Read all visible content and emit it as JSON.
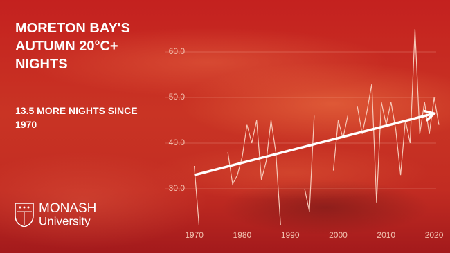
{
  "chart_data": {
    "type": "line",
    "title": "MORETON BAY'S AUTUMN 20°C+ NIGHTS",
    "annotation": "13.5 MORE NIGHTS SINCE 1970",
    "x": [
      1970,
      1971,
      1972,
      1973,
      1974,
      1975,
      1976,
      1977,
      1978,
      1979,
      1980,
      1981,
      1982,
      1983,
      1984,
      1985,
      1986,
      1987,
      1988,
      1989,
      1990,
      1991,
      1992,
      1993,
      1994,
      1995,
      1996,
      1997,
      1998,
      1999,
      2000,
      2001,
      2002,
      2003,
      2004,
      2005,
      2006,
      2007,
      2008,
      2009,
      2010,
      2011,
      2012,
      2013,
      2014,
      2015,
      2016,
      2017,
      2018,
      2019,
      2020,
      2021
    ],
    "values": [
      35,
      22,
      null,
      null,
      null,
      null,
      null,
      38,
      31,
      33,
      37,
      44,
      40,
      45,
      32,
      36,
      45,
      38,
      22,
      null,
      null,
      null,
      null,
      30,
      25,
      46,
      null,
      null,
      null,
      34,
      45,
      41,
      46,
      null,
      48,
      42,
      47,
      53,
      27,
      49,
      44,
      49,
      43,
      33,
      45,
      40,
      65,
      42,
      49,
      42,
      50,
      44
    ],
    "color": "#f6c9b8",
    "trend": {
      "x": [
        1970,
        2020
      ],
      "values": [
        33,
        46.5
      ],
      "color": "#ffffff"
    },
    "xlim": [
      1964,
      2021
    ],
    "xticks": [
      1970,
      1980,
      1990,
      2000,
      2010,
      2020
    ],
    "ylim": [
      20,
      66
    ],
    "yticks": [
      {
        "value": 30,
        "label": "30.0"
      },
      {
        "value": 40,
        "label": "40.0"
      },
      {
        "value": 50,
        "label": "50.0"
      },
      {
        "value": 60,
        "label": "60.0"
      }
    ],
    "grid": true
  },
  "logo": {
    "name": "MONASH",
    "subtitle": "University"
  }
}
